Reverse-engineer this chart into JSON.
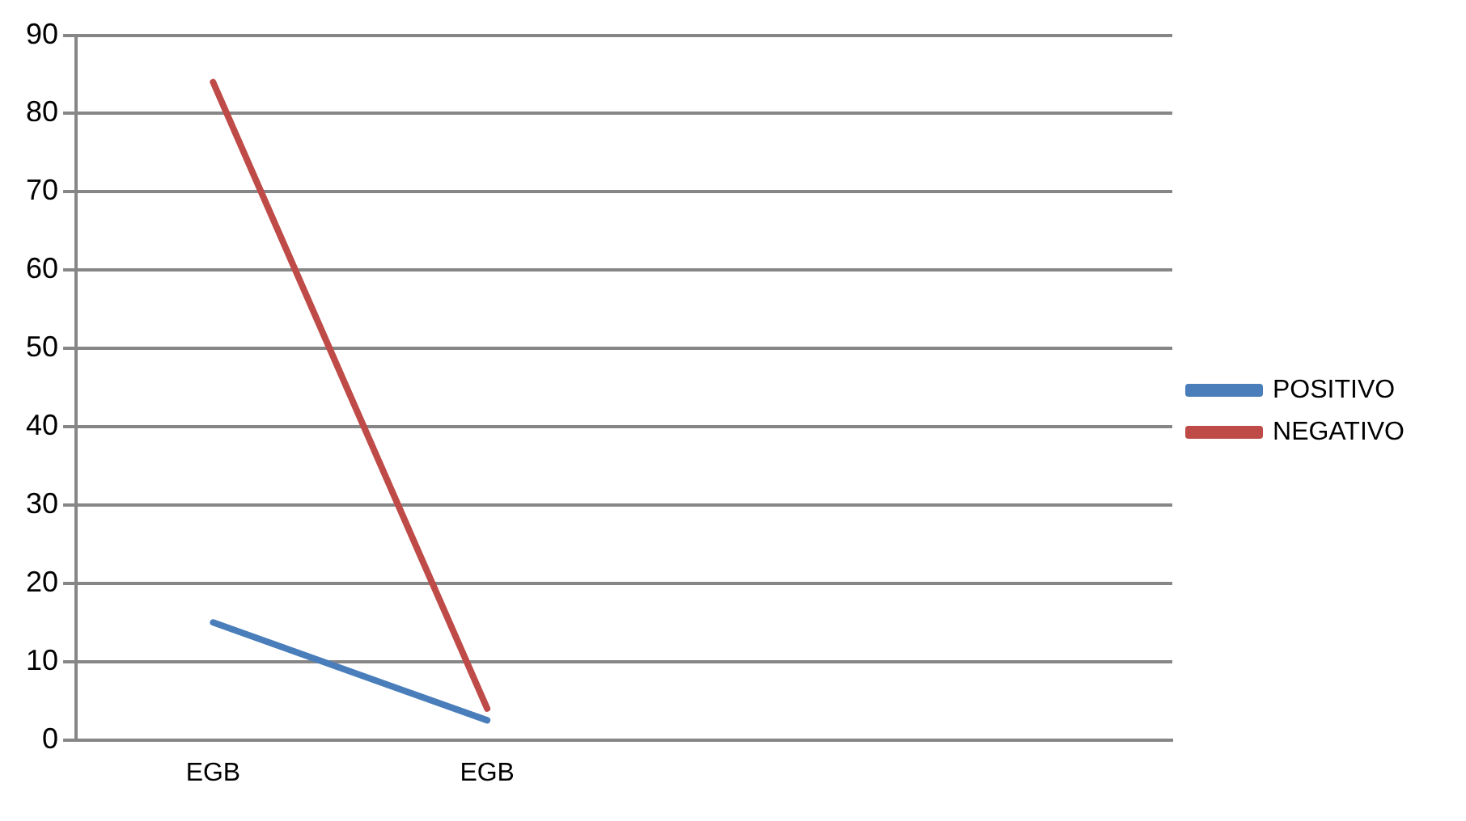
{
  "chart_data": {
    "type": "line",
    "categories": [
      "EGB",
      "EGB",
      null,
      null
    ],
    "series": [
      {
        "name": "POSITIVO",
        "color": "#4a7ebb",
        "values": [
          15,
          2.5,
          null,
          null
        ]
      },
      {
        "name": "NEGATIVO",
        "color": "#be4b48",
        "values": [
          84,
          4,
          null,
          null
        ]
      }
    ],
    "ylim": [
      0,
      90
    ],
    "yticks": [
      0,
      10,
      20,
      30,
      40,
      50,
      60,
      70,
      80,
      90
    ],
    "grid": "y",
    "legend": "right",
    "marker": "none"
  }
}
